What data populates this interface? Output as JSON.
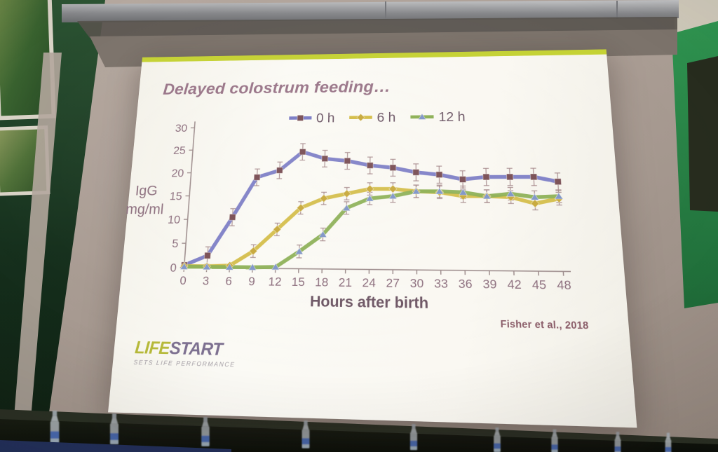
{
  "theme": {
    "accent": "#c5d234",
    "title_color": "#9a7689",
    "tick_color": "#8d6f7e",
    "axis_color": "#9b8a8a",
    "xlabel_color": "#6e5765",
    "legend_color": "#6d5766",
    "error_color": "#a5888a",
    "citation_color": "#8a5c68",
    "logo_life": "#b6b93a",
    "logo_start": "#7d7090",
    "logo_tagline": "#a29ca3",
    "bottle_label": "#3b5fb0"
  },
  "slide": {
    "title": "Delayed colostrum feeding…",
    "citation": "Fisher et al., 2018",
    "logo": {
      "part1": "LIFE",
      "part2": "START",
      "tagline": "SETS LIFE PERFORMANCE"
    }
  },
  "chart_data": {
    "type": "line",
    "title": "Delayed colostrum feeding…",
    "xlabel": "Hours after birth",
    "ylabel": "IgG mg/ml",
    "ylabel_lines": [
      "IgG",
      "mg/ml"
    ],
    "x": [
      0,
      3,
      6,
      9,
      12,
      15,
      18,
      21,
      24,
      27,
      30,
      33,
      36,
      39,
      42,
      45,
      48
    ],
    "xlim": [
      0,
      48
    ],
    "ylim": [
      0,
      30
    ],
    "ytick_step": 5,
    "grid": false,
    "legend_position": "top",
    "series": [
      {
        "name": "0 h",
        "color": "#7b7cc5",
        "marker": "square",
        "marker_color": "#7a4f55",
        "error": 1.8,
        "values": [
          0.5,
          2.5,
          10.5,
          19,
          20.5,
          24.5,
          23,
          22.5,
          21.5,
          21,
          20,
          19.5,
          18.5,
          19,
          19,
          19,
          18
        ]
      },
      {
        "name": "6 h",
        "color": "#d4bd47",
        "marker": "diamond",
        "marker_color": "#c8a93c",
        "error": 1.3,
        "values": [
          0.3,
          0.3,
          0.5,
          3.5,
          8,
          12.5,
          14.5,
          15.5,
          16.5,
          16.5,
          16,
          15.8,
          15,
          15,
          14.8,
          13.5,
          14.5
        ]
      },
      {
        "name": "12 h",
        "color": "#8cb055",
        "marker": "triangle",
        "marker_color": "#8096c8",
        "error": 1.3,
        "values": [
          0.2,
          0.2,
          0.2,
          0.2,
          0.3,
          3.5,
          7,
          12.5,
          14.5,
          15,
          16,
          16,
          15.8,
          15,
          15.5,
          14.8,
          15
        ]
      }
    ]
  }
}
